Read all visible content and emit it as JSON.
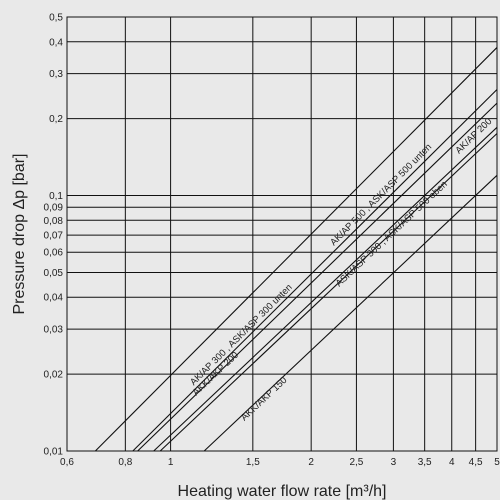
{
  "chart_data": {
    "type": "line",
    "title": "",
    "xlabel": "Heating water flow rate [m³/h]",
    "ylabel": "Pressure drop Δp  [bar]",
    "x_scale": "log",
    "y_scale": "log",
    "xlim": [
      0.6,
      5
    ],
    "ylim": [
      0.01,
      0.5
    ],
    "grid": true,
    "x_ticks": [
      {
        "value": 0.6,
        "label": "0,6"
      },
      {
        "value": 0.8,
        "label": "0,8"
      },
      {
        "value": 1,
        "label": "1"
      },
      {
        "value": 1.5,
        "label": "1,5"
      },
      {
        "value": 2,
        "label": "2"
      },
      {
        "value": 2.5,
        "label": "2,5"
      },
      {
        "value": 3,
        "label": "3"
      },
      {
        "value": 3.5,
        "label": "3,5"
      },
      {
        "value": 4,
        "label": "4"
      },
      {
        "value": 4.5,
        "label": "4,5"
      },
      {
        "value": 5,
        "label": "5"
      }
    ],
    "y_ticks": [
      {
        "value": 0.01,
        "label": "0,01"
      },
      {
        "value": 0.02,
        "label": "0,02"
      },
      {
        "value": 0.03,
        "label": "0,03"
      },
      {
        "value": 0.04,
        "label": "0,04"
      },
      {
        "value": 0.05,
        "label": "0,05"
      },
      {
        "value": 0.06,
        "label": "0,06"
      },
      {
        "value": 0.07,
        "label": "0,07"
      },
      {
        "value": 0.08,
        "label": "0,08"
      },
      {
        "value": 0.09,
        "label": "0,09"
      },
      {
        "value": 0.1,
        "label": "0,1"
      },
      {
        "value": 0.2,
        "label": "0,2"
      },
      {
        "value": 0.3,
        "label": "0,3"
      },
      {
        "value": 0.4,
        "label": "0,4"
      },
      {
        "value": 0.5,
        "label": "0,5"
      }
    ],
    "series": [
      {
        "name": "AK/AP 500 , ASK/ASP 500 unten",
        "points": [
          [
            0.69,
            0.01
          ],
          [
            5,
            0.38
          ]
        ]
      },
      {
        "name": "AK/AP 300 , ASK/ASP 300 unten",
        "points": [
          [
            0.83,
            0.01
          ],
          [
            5,
            0.26
          ]
        ]
      },
      {
        "name": "AK/AP 200",
        "points": [
          [
            0.85,
            0.01
          ],
          [
            5,
            0.23
          ]
        ]
      },
      {
        "name": "AKK/AKP 200",
        "points": [
          [
            0.92,
            0.01
          ],
          [
            5,
            0.185
          ]
        ]
      },
      {
        "name": "ASK/ASP 300 , ASK/ASP 500 oben",
        "points": [
          [
            0.95,
            0.01
          ],
          [
            5,
            0.175
          ]
        ]
      },
      {
        "name": "AKK/AKP 150",
        "points": [
          [
            1.18,
            0.01
          ],
          [
            5,
            0.12
          ]
        ]
      }
    ],
    "annotations": [
      {
        "text": "AK/AP 500 , ASK/ASP 500 unten",
        "series": 0,
        "x": 2.85,
        "y": 0.099
      },
      {
        "text": "AK/AP 300 , ASK/ASP 300 unten",
        "series": 1,
        "x": 1.43,
        "y": 0.028
      },
      {
        "text": "AK/AP 200",
        "series": 2,
        "x": 4.5,
        "y": 0.168
      },
      {
        "text": "AKK/AKP 200",
        "series": 3,
        "x": 1.26,
        "y": 0.0197
      },
      {
        "text": "ASK/ASP 300 , ASK/ASP 500 oben",
        "series": 4,
        "x": 3.0,
        "y": 0.0695
      },
      {
        "text": "AKK/AKP 150",
        "series": 5,
        "x": 1.6,
        "y": 0.0157
      }
    ]
  }
}
